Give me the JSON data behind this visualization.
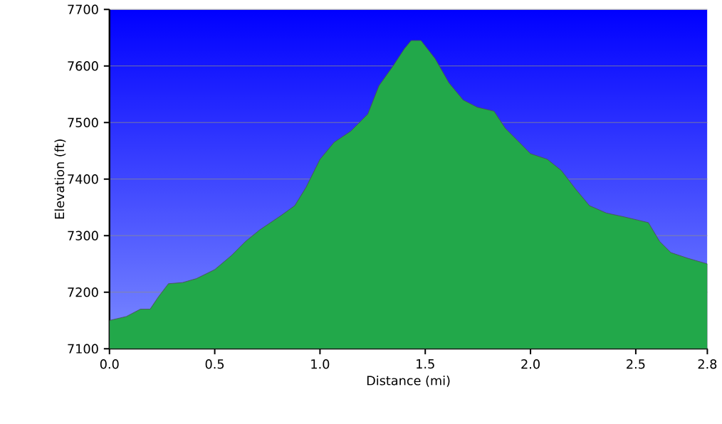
{
  "chart_data": {
    "type": "area",
    "xlabel": "Distance (mi)",
    "ylabel": "Elevation (ft)",
    "x": [
      0,
      0.08,
      0.147,
      0.193,
      0.233,
      0.28,
      0.347,
      0.413,
      0.5,
      0.58,
      0.647,
      0.713,
      0.813,
      0.88,
      0.933,
      1.0,
      1.067,
      1.147,
      1.227,
      1.28,
      1.347,
      1.4,
      1.433,
      1.48,
      1.547,
      1.613,
      1.68,
      1.747,
      1.827,
      1.88,
      1.947,
      2.0,
      2.08,
      2.147,
      2.213,
      2.28,
      2.36,
      2.447,
      2.56,
      2.613,
      2.667,
      2.747,
      2.84
    ],
    "series": [
      {
        "color": "#22a84a",
        "values": [
          7150,
          7157,
          7170,
          7170,
          7192,
          7215,
          7217,
          7224,
          7240,
          7265,
          7290,
          7310,
          7335,
          7353,
          7385,
          7435,
          7465,
          7485,
          7515,
          7565,
          7600,
          7630,
          7645,
          7645,
          7613,
          7570,
          7540,
          7527,
          7520,
          7490,
          7465,
          7445,
          7435,
          7415,
          7383,
          7353,
          7340,
          7333,
          7323,
          7290,
          7270,
          7260,
          7250
        ]
      }
    ],
    "xlim": [
      0,
      2.84
    ],
    "ylim": [
      7100,
      7700
    ],
    "xticks": [
      {
        "value": 0,
        "label": "0.0"
      },
      0.5,
      {
        "value": 1,
        "label": "1.0"
      },
      1.5,
      {
        "value": 2,
        "label": "2.0"
      },
      2.5,
      {
        "value": 2.84,
        "label": "2.8"
      }
    ],
    "yticks": [
      7100,
      7200,
      7300,
      7400,
      7500,
      7600,
      7700
    ],
    "grid": "y"
  }
}
